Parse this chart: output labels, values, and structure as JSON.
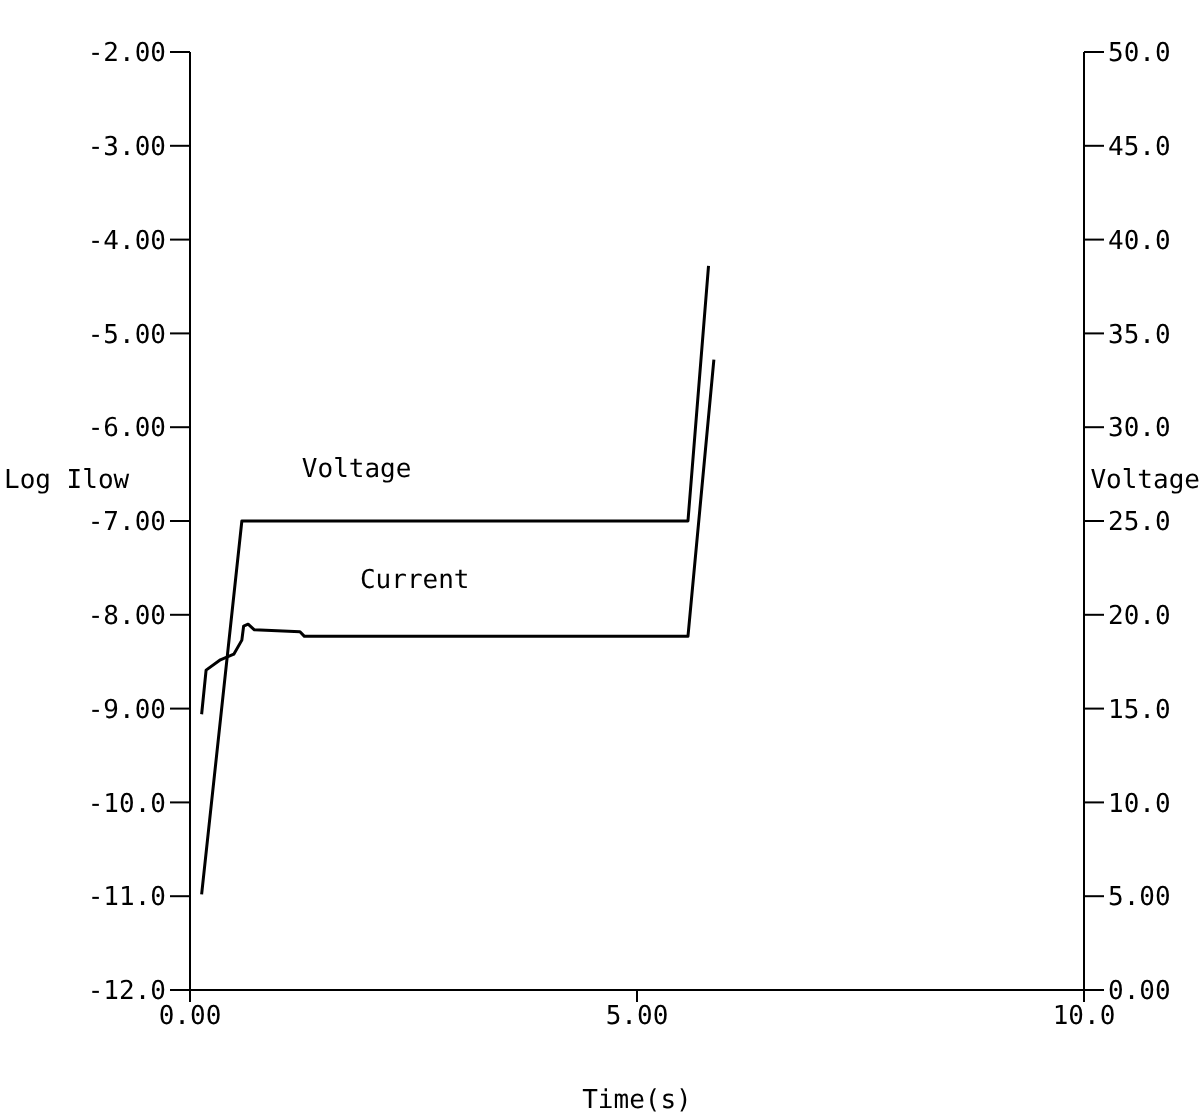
{
  "chart_data": {
    "type": "line",
    "xlabel": "Time(s)",
    "ylabel": "Log Ilow",
    "y2label": "Voltage",
    "xlim": [
      0,
      10
    ],
    "xticks": [
      {
        "value": 0,
        "label": "0.00"
      },
      {
        "value": 5,
        "label": "5.00"
      },
      {
        "value": 10,
        "label": "10.0"
      }
    ],
    "ylim": [
      -12,
      -2
    ],
    "yticks": [
      {
        "value": -12,
        "label": "-12.0"
      },
      {
        "value": -11,
        "label": "-11.0"
      },
      {
        "value": -10,
        "label": "-10.0"
      },
      {
        "value": -9,
        "label": "-9.00"
      },
      {
        "value": -8,
        "label": "-8.00"
      },
      {
        "value": -7,
        "label": "-7.00"
      },
      {
        "value": -6,
        "label": "-6.00"
      },
      {
        "value": -5,
        "label": "-5.00"
      },
      {
        "value": -4,
        "label": "-4.00"
      },
      {
        "value": -3,
        "label": "-3.00"
      },
      {
        "value": -2,
        "label": "-2.00"
      }
    ],
    "y2lim": [
      0,
      50
    ],
    "y2ticks": [
      {
        "value": 0,
        "label": "0.00"
      },
      {
        "value": 5,
        "label": "5.00"
      },
      {
        "value": 10,
        "label": "10.0"
      },
      {
        "value": 15,
        "label": "15.0"
      },
      {
        "value": 20,
        "label": "20.0"
      },
      {
        "value": 25,
        "label": "25.0"
      },
      {
        "value": 30,
        "label": "30.0"
      },
      {
        "value": 35,
        "label": "35.0"
      },
      {
        "value": 40,
        "label": "40.0"
      },
      {
        "value": 45,
        "label": "45.0"
      },
      {
        "value": 50,
        "label": "50.0"
      }
    ],
    "marker": "none",
    "line_style": "solid",
    "series": [
      {
        "name": "Voltage",
        "color": "#000000",
        "axis": "y2",
        "x": [
          0.13,
          0.58,
          5.57,
          5.8
        ],
        "values": [
          5.1,
          25,
          25,
          38.6
        ]
      },
      {
        "name": "Current",
        "color": "#000000",
        "x": [
          0.13,
          0.18,
          0.34,
          0.49,
          0.58,
          0.6,
          0.65,
          0.72,
          1.23,
          1.28,
          5.57,
          5.86
        ],
        "values": [
          -9.06,
          -8.59,
          -8.48,
          -8.42,
          -8.27,
          -8.12,
          -8.1,
          -8.16,
          -8.18,
          -8.23,
          -8.23,
          -5.28
        ]
      }
    ]
  }
}
